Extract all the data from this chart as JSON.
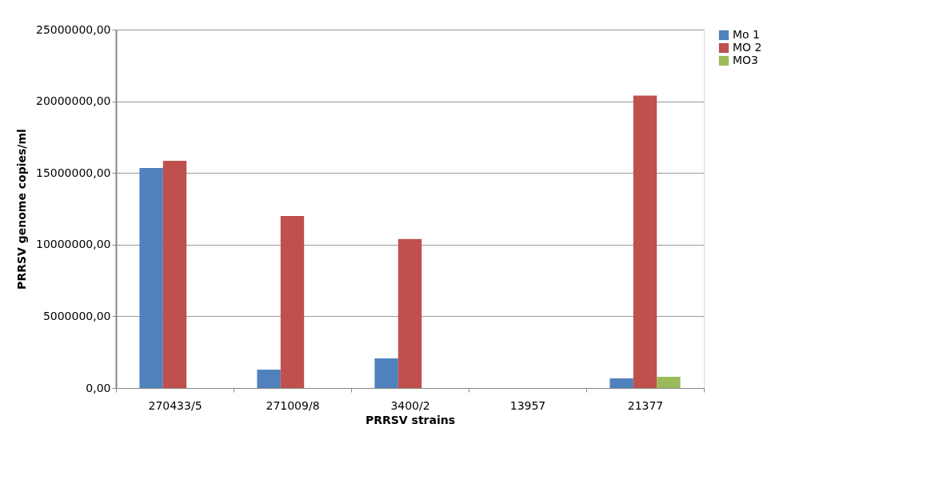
{
  "chart_data": {
    "type": "bar",
    "xlabel": "PRRSV strains",
    "ylabel": "PRRSV genome copies/ml",
    "categories": [
      "270433/5",
      "271009/8",
      "3400/2",
      "13957",
      "21377"
    ],
    "series": [
      {
        "name": "Mo 1",
        "color": "#4f81bd",
        "values": [
          15350000,
          1280000,
          2060000,
          0,
          670000
        ]
      },
      {
        "name": "MO 2",
        "color": "#c0504d",
        "values": [
          15850000,
          12000000,
          10400000,
          0,
          20400000
        ]
      },
      {
        "name": "MO3",
        "color": "#9bbb59",
        "values": [
          0,
          0,
          0,
          0,
          780000
        ]
      }
    ],
    "ylim": [
      0,
      25000000
    ],
    "yticks": [
      {
        "value": 0,
        "label": "0,00"
      },
      {
        "value": 5000000,
        "label": "5000000,00"
      },
      {
        "value": 10000000,
        "label": "10000000,00"
      },
      {
        "value": 15000000,
        "label": "15000000,00"
      },
      {
        "value": 20000000,
        "label": "20000000,00"
      },
      {
        "value": 25000000,
        "label": "25000000,00"
      }
    ],
    "grid": "y",
    "legend": "right"
  }
}
